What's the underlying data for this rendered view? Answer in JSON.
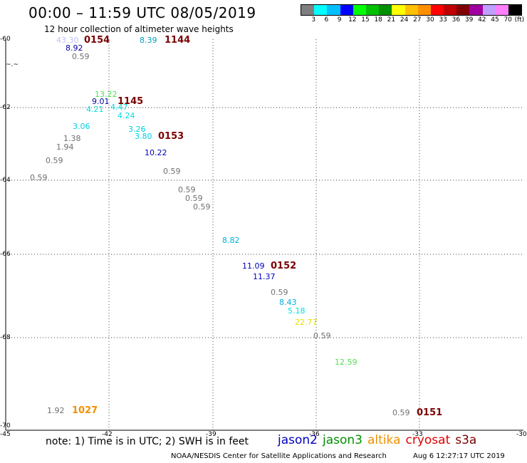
{
  "header": {
    "title": "00:00 – 11:59 UTC 08/05/2019",
    "subtitle": "12 hour collection of altimeter wave heights"
  },
  "legend": {
    "colors": [
      "#7f7f7f",
      "#00ffff",
      "#00bfff",
      "#0000ff",
      "#00ff00",
      "#00c000",
      "#009000",
      "#ffff00",
      "#ffc000",
      "#ff9000",
      "#ff0000",
      "#c00000",
      "#800000",
      "#a000a0",
      "#c0a0ff",
      "#ff80ff",
      "#000000"
    ],
    "labels": [
      "3",
      "6",
      "9",
      "12",
      "15",
      "18",
      "21",
      "24",
      "27",
      "30",
      "33",
      "36",
      "39",
      "42",
      "45",
      "70",
      "(ft)"
    ]
  },
  "axes": {
    "lat_labels": [
      "-60",
      "-62",
      "-64",
      "-66",
      "-68",
      "-70"
    ],
    "lon_labels": [
      "-45",
      "-42",
      "-39",
      "-36",
      "-33",
      "-30"
    ]
  },
  "coast_text": "~.~",
  "observations": [
    {
      "value": "43.30",
      "color": "#c0c0ff"
    },
    {
      "value": "8.92",
      "color": "#0000a0"
    },
    {
      "value": "0.59",
      "color": "#707070"
    },
    {
      "value": "8.39",
      "color": "#00a0c0"
    },
    {
      "value": "13.22",
      "color": "#50e050"
    },
    {
      "value": "9.01",
      "color": "#0000a0"
    },
    {
      "value": "4.21",
      "color": "#00e0e0"
    },
    {
      "value": "4.47",
      "color": "#00e0e0"
    },
    {
      "value": "4.24",
      "color": "#00e0e0"
    },
    {
      "value": "3.06",
      "color": "#00d0e0"
    },
    {
      "value": "1.38",
      "color": "#707070"
    },
    {
      "value": "1.94",
      "color": "#707070"
    },
    {
      "value": "0.59",
      "color": "#707070"
    },
    {
      "value": "0.59",
      "color": "#707070"
    },
    {
      "value": "3.26",
      "color": "#00d0e0"
    },
    {
      "value": "3.80",
      "color": "#00d0e0"
    },
    {
      "value": "10.22",
      "color": "#0000c0"
    },
    {
      "value": "0.59",
      "color": "#707070"
    },
    {
      "value": "0.59",
      "color": "#707070"
    },
    {
      "value": "0.59",
      "color": "#707070"
    },
    {
      "value": "0.59",
      "color": "#707070"
    },
    {
      "value": "8.82",
      "color": "#00b0e0"
    },
    {
      "value": "11.09",
      "color": "#0000c0"
    },
    {
      "value": "11.37",
      "color": "#0000c0"
    },
    {
      "value": "0.59",
      "color": "#707070"
    },
    {
      "value": "8.43",
      "color": "#00b0e0"
    },
    {
      "value": "5.18",
      "color": "#00e0e0"
    },
    {
      "value": "22.77",
      "color": "#e0e000"
    },
    {
      "value": "0.59",
      "color": "#707070"
    },
    {
      "value": "12.59",
      "color": "#50e050"
    },
    {
      "value": "1.92",
      "color": "#707070"
    },
    {
      "value": "0.59",
      "color": "#707070"
    }
  ],
  "passes": [
    {
      "time": "0154",
      "color": "#7a0000"
    },
    {
      "time": "1144",
      "color": "#7a0000"
    },
    {
      "time": "1145",
      "color": "#7a0000"
    },
    {
      "time": "0153",
      "color": "#7a0000"
    },
    {
      "time": "0152",
      "color": "#7a0000"
    },
    {
      "time": "1027",
      "color": "#f09000"
    },
    {
      "time": "0151",
      "color": "#7a0000"
    }
  ],
  "footer": {
    "note": "note:  1) Time is in UTC;  2) SWH is in feet",
    "missions": [
      {
        "name": "jason2",
        "color": "#0000c0"
      },
      {
        "name": "jason3",
        "color": "#009000"
      },
      {
        "name": "altika",
        "color": "#f09000"
      },
      {
        "name": "cryosat",
        "color": "#e00000"
      },
      {
        "name": "s3a",
        "color": "#7a0000"
      }
    ],
    "credit": "NOAA/NESDIS Center for Satellite Applications and Research",
    "timestamp": "Aug  6 12:27:17 UTC 2019"
  }
}
